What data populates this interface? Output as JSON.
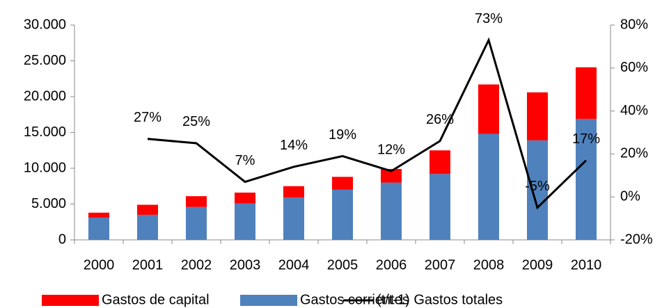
{
  "chart_data": {
    "type": "bar",
    "categories": [
      "2000",
      "2001",
      "2002",
      "2003",
      "2004",
      "2005",
      "2006",
      "2007",
      "2008",
      "2009",
      "2010"
    ],
    "series": [
      {
        "name": "Gastos de capital",
        "color": "#ff0000",
        "values": [
          700,
          1400,
          1500,
          1500,
          1600,
          1800,
          1900,
          3300,
          6900,
          6700,
          7200
        ]
      },
      {
        "name": "Gastos corrientes",
        "color": "#4f81bd",
        "values": [
          3100,
          3500,
          4600,
          5100,
          5900,
          7000,
          8000,
          9200,
          14800,
          13900,
          16900
        ]
      },
      {
        "name": "(t/t-1) Gastos totales",
        "color": "#000000",
        "type": "line",
        "axis": "y2",
        "values": [
          null,
          27,
          25,
          7,
          14,
          19,
          12,
          26,
          73,
          -5,
          17
        ],
        "value_labels": [
          null,
          "27%",
          "25%",
          "7%",
          "14%",
          "19%",
          "12%",
          "26%",
          "73%",
          "-5%",
          "17%"
        ]
      }
    ],
    "ylim": [
      0,
      30000
    ],
    "yticks": [
      0,
      {
        "value": 5000,
        "label": "5.000"
      },
      {
        "value": 10000,
        "label": "10.000"
      },
      {
        "value": 15000,
        "label": "15.000"
      },
      {
        "value": 20000,
        "label": "20.000"
      },
      {
        "value": 25000,
        "label": "25.000"
      },
      {
        "value": 30000,
        "label": "30.000"
      }
    ],
    "y2lim": [
      -20,
      80
    ],
    "y2ticks": [
      {
        "value": -20,
        "label": "-20%"
      },
      {
        "value": 0,
        "label": "0%"
      },
      {
        "value": 20,
        "label": "20%"
      },
      {
        "value": 40,
        "label": "40%"
      },
      {
        "value": 60,
        "label": "60%"
      },
      {
        "value": 80,
        "label": "80%"
      }
    ],
    "grid": false,
    "legend": "bottom"
  }
}
